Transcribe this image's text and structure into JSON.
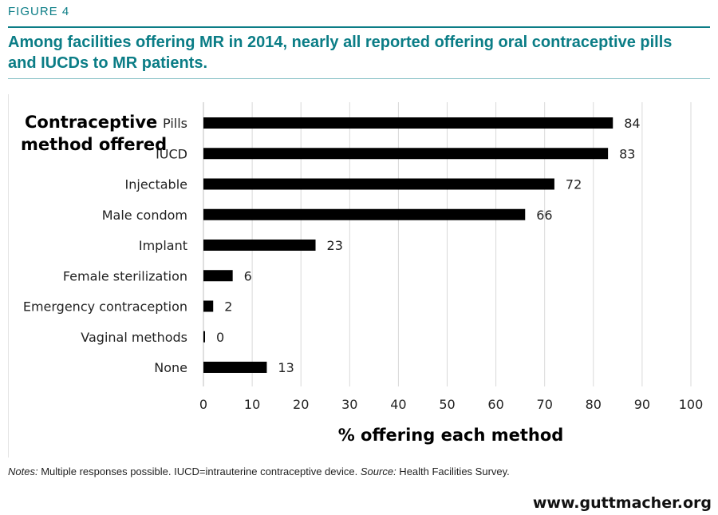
{
  "figure_label": "FIGURE 4",
  "title": "Among facilities offering MR in 2014, nearly all reported offering oral contraceptive pills and IUCDs to MR patients.",
  "chart_data": {
    "type": "bar",
    "orientation": "horizontal",
    "categories": [
      "Pills",
      "IUCD",
      "Injectable",
      "Male condom",
      "Implant",
      "Female sterilization",
      "Emergency contraception",
      "Vaginal methods",
      "None"
    ],
    "values": [
      84,
      83,
      72,
      66,
      23,
      6,
      2,
      0,
      13
    ],
    "data_labels": [
      "84",
      "83",
      "72",
      "66",
      "23",
      "6",
      "2",
      "0",
      "13"
    ],
    "category_axis_title": [
      "Contraceptive",
      "method offered"
    ],
    "xlabel": "% offering each method",
    "xlim": [
      0,
      100
    ],
    "xticks": [
      0,
      10,
      20,
      30,
      40,
      50,
      60,
      70,
      80,
      90,
      100
    ],
    "xtick_labels": [
      "0",
      "10",
      "20",
      "30",
      "40",
      "50",
      "60",
      "70",
      "80",
      "90",
      "100"
    ],
    "grid": "vertical",
    "bar_color": "#000000",
    "grid_color": "#d9d9d9"
  },
  "notes": {
    "notes_label": "Notes:",
    "notes_text": " Multiple responses possible. IUCD=intrauterine contraceptive device. ",
    "source_label": "Source:",
    "source_text": " Health Facilities Survey."
  },
  "footer_url": "www.guttmacher.org",
  "colors": {
    "accent": "#0b7d86",
    "accent_light": "#8cc3c8"
  }
}
